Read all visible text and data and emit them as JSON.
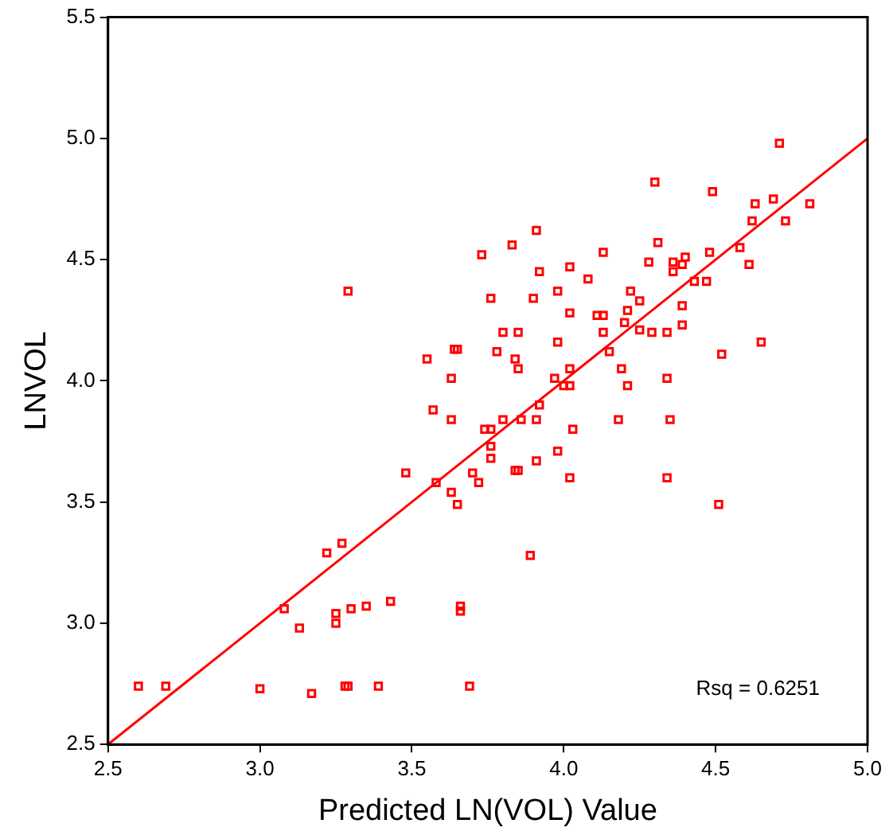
{
  "chart_data": {
    "type": "scatter",
    "xlabel": "Predicted LN(VOL) Value",
    "ylabel": "LNVOL",
    "marker": "square",
    "grid": false,
    "legend": false,
    "xlim": [
      2.5,
      5.0
    ],
    "ylim": [
      2.5,
      5.5
    ],
    "xticks": [
      2.5,
      {
        "value": 3,
        "label": "3.0"
      },
      3.5,
      {
        "value": 4,
        "label": "4.0"
      },
      4.5,
      {
        "value": 5,
        "label": "5.0"
      }
    ],
    "yticks": [
      2.5,
      {
        "value": 3,
        "label": "3.0"
      },
      3.5,
      {
        "value": 4,
        "label": "4.0"
      },
      4.5,
      {
        "value": 5,
        "label": "5.0"
      },
      5.5
    ],
    "annotations": [
      "Rsq = 0.6251"
    ],
    "series": [
      {
        "color": "#ff0000",
        "x": [
          2.6,
          2.69,
          3.0,
          3.17,
          3.28,
          3.29,
          3.39,
          3.69,
          3.08,
          3.13,
          3.25,
          3.25,
          3.3,
          3.35,
          3.43,
          3.66,
          3.66,
          3.22,
          3.27,
          3.48,
          3.58,
          3.63,
          3.65,
          3.7,
          3.72,
          3.89,
          4.51,
          4.34,
          4.65,
          4.52,
          4.34,
          4.35,
          4.18,
          4.21,
          4.19,
          4.15,
          4.02,
          3.98,
          3.91,
          3.85,
          3.84,
          3.76,
          3.76,
          4.03,
          3.91,
          3.86,
          3.8,
          3.74,
          3.76,
          3.92,
          3.97,
          4.0,
          4.02,
          4.02,
          3.78,
          3.84,
          3.85,
          3.98,
          4.71,
          4.3,
          4.49,
          4.63,
          4.69,
          4.81,
          4.62,
          4.73,
          3.91,
          3.73,
          3.83,
          4.13,
          4.31,
          4.48,
          4.58,
          4.61,
          4.28,
          4.36,
          4.4,
          4.39,
          4.36,
          3.92,
          4.02,
          4.08,
          4.43,
          4.47,
          3.76,
          3.9,
          3.98,
          4.22,
          4.25,
          4.39,
          4.02,
          4.11,
          4.13,
          4.21,
          4.2,
          4.39,
          4.25,
          4.29,
          4.34,
          4.13,
          3.8,
          3.85,
          3.65,
          3.63,
          3.63,
          3.29,
          3.55,
          3.64,
          3.57
        ],
        "values": [
          2.74,
          2.74,
          2.73,
          2.71,
          2.74,
          2.74,
          2.74,
          2.74,
          3.06,
          2.98,
          3.04,
          3.0,
          3.06,
          3.07,
          3.09,
          3.07,
          3.05,
          3.29,
          3.33,
          3.62,
          3.58,
          3.54,
          3.49,
          3.62,
          3.58,
          3.28,
          3.49,
          3.6,
          4.16,
          4.11,
          4.01,
          3.84,
          3.84,
          3.98,
          4.05,
          4.12,
          3.6,
          3.71,
          3.67,
          3.63,
          3.63,
          3.68,
          3.73,
          3.8,
          3.84,
          3.84,
          3.84,
          3.8,
          3.8,
          3.9,
          4.01,
          3.98,
          3.98,
          4.05,
          4.12,
          4.09,
          4.05,
          4.16,
          4.98,
          4.82,
          4.78,
          4.73,
          4.75,
          4.73,
          4.66,
          4.66,
          4.62,
          4.52,
          4.56,
          4.53,
          4.57,
          4.53,
          4.55,
          4.48,
          4.49,
          4.49,
          4.51,
          4.48,
          4.45,
          4.45,
          4.47,
          4.42,
          4.41,
          4.41,
          4.34,
          4.34,
          4.37,
          4.37,
          4.33,
          4.31,
          4.28,
          4.27,
          4.27,
          4.29,
          4.24,
          4.23,
          4.21,
          4.2,
          4.2,
          4.2,
          4.2,
          4.2,
          4.13,
          4.01,
          3.84,
          4.37,
          4.09,
          4.13,
          3.88
        ]
      },
      {
        "type": "line",
        "color": "#ff0000",
        "marker": "none",
        "x": [
          2.5,
          5.0
        ],
        "values": [
          2.5,
          5.0
        ]
      }
    ]
  }
}
